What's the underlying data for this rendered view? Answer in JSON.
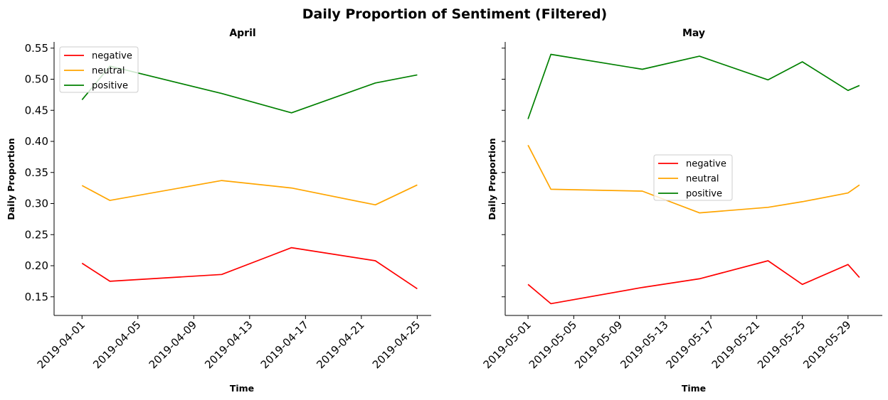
{
  "title": "Daily Proportion of Sentiment (Filtered)",
  "colors": {
    "negative": "#ff0000",
    "neutral": "#ffa500",
    "positive": "#008000"
  },
  "chart_data": [
    {
      "type": "line",
      "title": "April",
      "xlabel": "Time",
      "ylabel": "Daily Proportion",
      "ylim": [
        0.12,
        0.56
      ],
      "yticks": [
        0.15,
        0.2,
        0.25,
        0.3,
        0.35,
        0.4,
        0.45,
        0.5,
        0.55
      ],
      "ytick_labels": [
        "0.15",
        "0.20",
        "0.25",
        "0.30",
        "0.35",
        "0.40",
        "0.45",
        "0.50",
        "0.55"
      ],
      "xlim": [
        "2019-03-30",
        "2019-04-26"
      ],
      "xticks": [
        "2019-04-01",
        "2019-04-05",
        "2019-04-09",
        "2019-04-13",
        "2019-04-17",
        "2019-04-21",
        "2019-04-25"
      ],
      "legend": "upper-left",
      "series": [
        {
          "name": "negative",
          "x": [
            "2019-04-01",
            "2019-04-03",
            "2019-04-11",
            "2019-04-16",
            "2019-04-22",
            "2019-04-25"
          ],
          "values": [
            0.204,
            0.175,
            0.186,
            0.229,
            0.208,
            0.163
          ]
        },
        {
          "name": "neutral",
          "x": [
            "2019-04-01",
            "2019-04-03",
            "2019-04-11",
            "2019-04-16",
            "2019-04-22",
            "2019-04-25"
          ],
          "values": [
            0.329,
            0.305,
            0.337,
            0.325,
            0.298,
            0.33
          ]
        },
        {
          "name": "positive",
          "x": [
            "2019-04-01",
            "2019-04-03",
            "2019-04-11",
            "2019-04-16",
            "2019-04-22",
            "2019-04-25"
          ],
          "values": [
            0.467,
            0.521,
            0.477,
            0.446,
            0.494,
            0.507
          ]
        }
      ]
    },
    {
      "type": "line",
      "title": "May",
      "xlabel": "Time",
      "ylabel": "Daily Proportion",
      "ylim": [
        0.12,
        0.56
      ],
      "yticks": [
        0.15,
        0.2,
        0.25,
        0.3,
        0.35,
        0.4,
        0.45,
        0.5,
        0.55
      ],
      "ytick_labels": [],
      "xlim": [
        "2019-04-29",
        "2019-06-01"
      ],
      "xticks": [
        "2019-05-01",
        "2019-05-05",
        "2019-05-09",
        "2019-05-13",
        "2019-05-17",
        "2019-05-21",
        "2019-05-25",
        "2019-05-29"
      ],
      "legend": "center-right",
      "series": [
        {
          "name": "negative",
          "x": [
            "2019-05-01",
            "2019-05-03",
            "2019-05-11",
            "2019-05-16",
            "2019-05-22",
            "2019-05-25",
            "2019-05-29",
            "2019-05-30"
          ],
          "values": [
            0.17,
            0.139,
            0.165,
            0.179,
            0.208,
            0.17,
            0.202,
            0.181
          ]
        },
        {
          "name": "neutral",
          "x": [
            "2019-05-01",
            "2019-05-03",
            "2019-05-11",
            "2019-05-16",
            "2019-05-22",
            "2019-05-25",
            "2019-05-29",
            "2019-05-30"
          ],
          "values": [
            0.394,
            0.323,
            0.32,
            0.285,
            0.294,
            0.303,
            0.317,
            0.33
          ]
        },
        {
          "name": "positive",
          "x": [
            "2019-05-01",
            "2019-05-03",
            "2019-05-11",
            "2019-05-16",
            "2019-05-22",
            "2019-05-25",
            "2019-05-29",
            "2019-05-30"
          ],
          "values": [
            0.436,
            0.54,
            0.516,
            0.537,
            0.499,
            0.528,
            0.482,
            0.49
          ]
        }
      ]
    }
  ]
}
